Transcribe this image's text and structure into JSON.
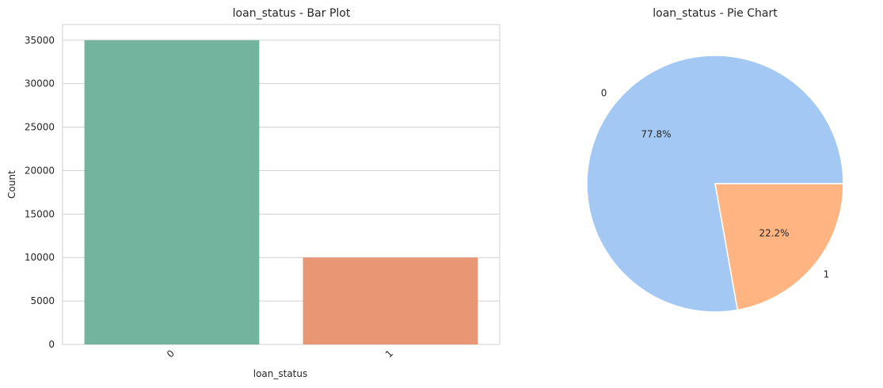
{
  "chart_data": [
    {
      "type": "bar",
      "title": "loan_status - Bar Plot",
      "xlabel": "loan_status",
      "ylabel": "Count",
      "categories": [
        "0",
        "1"
      ],
      "values": [
        35000,
        10000
      ],
      "ylim": [
        0,
        36800
      ],
      "yticks": [
        0,
        5000,
        10000,
        15000,
        20000,
        25000,
        30000,
        35000
      ],
      "ytick_labels": [
        "0",
        "5000",
        "10000",
        "15000",
        "20000",
        "25000",
        "30000",
        "35000"
      ],
      "colors": [
        "#72b49e",
        "#e89673"
      ],
      "grid": true,
      "legend": "none"
    },
    {
      "type": "pie",
      "title": "loan_status - Pie Chart",
      "labels": [
        "0",
        "1"
      ],
      "values": [
        77.8,
        22.2
      ],
      "pct_labels": [
        "77.8%",
        "22.2%"
      ],
      "colors": [
        "#a2c8f3",
        "#ffb482"
      ],
      "legend": "none"
    }
  ]
}
